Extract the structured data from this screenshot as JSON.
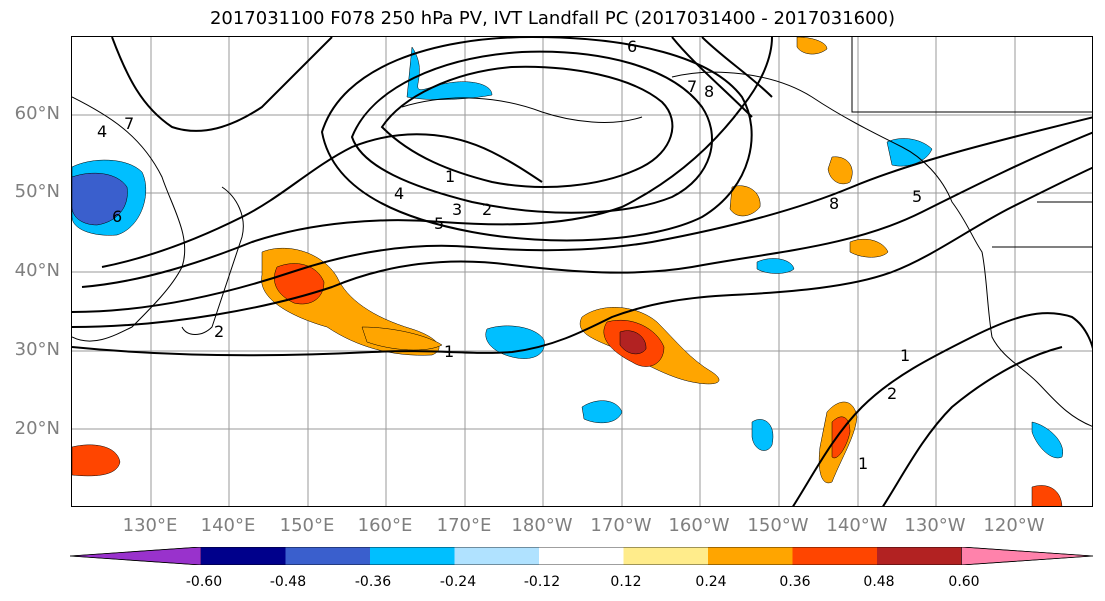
{
  "title": "2017031100 F078 250 hPa PV, IVT Landfall PC (2017031400 - 2017031600)",
  "lat_labels": [
    "60°N",
    "50°N",
    "40°N",
    "30°N",
    "20°N"
  ],
  "lon_labels": [
    "130°E",
    "140°E",
    "150°E",
    "160°E",
    "170°E",
    "180°W",
    "170°W",
    "160°W",
    "150°W",
    "140°W",
    "130°W",
    "120°W"
  ],
  "contour_labels": [
    "6",
    "8",
    "7",
    "1",
    "4",
    "3",
    "2",
    "5",
    "4",
    "6",
    "7",
    "2",
    "1",
    "5",
    "8",
    "1",
    "2",
    "1"
  ],
  "colorbar": {
    "colors": [
      "#9932CC",
      "#00008B",
      "#3A5FCD",
      "#00BFFF",
      "#B0E2FF",
      "#FFFFFF",
      "#FFEC8B",
      "#FFA500",
      "#FF4500",
      "#B22222",
      "#FF82AB"
    ],
    "tick_labels": [
      "-0.60",
      "-0.48",
      "-0.36",
      "-0.24",
      "-0.12",
      "0.12",
      "0.24",
      "0.36",
      "0.48",
      "0.60"
    ]
  }
}
